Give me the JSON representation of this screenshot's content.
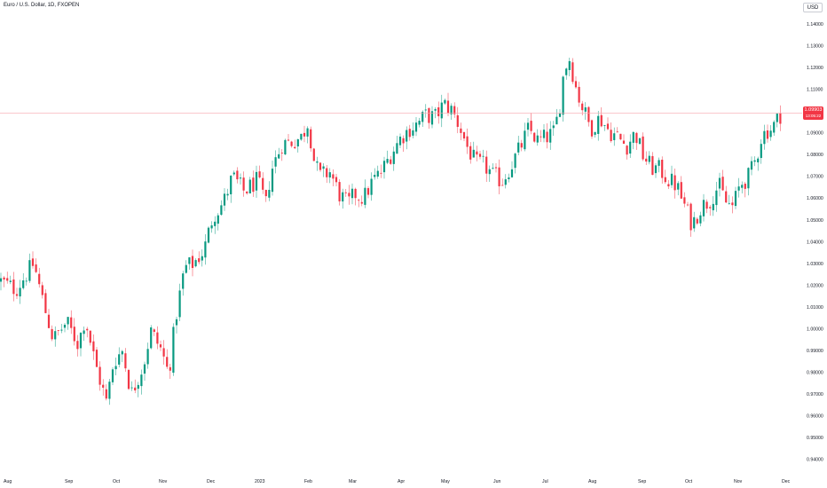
{
  "header": {
    "title": "Euro / U.S. Dollar, 1D, FXOPEN",
    "currency": "USD"
  },
  "price_tag": {
    "price": "1.09903",
    "countdown": "13:05:22"
  },
  "colors": {
    "up": "#089981",
    "down": "#f23645",
    "price_line": "#f7a6ad",
    "axis_text": "#131722",
    "grid_bg": "#ffffff"
  },
  "chart_data": {
    "type": "candlestick",
    "y_axis": {
      "side": "right",
      "range": [
        0.935,
        1.142
      ],
      "ticks": [
        "1.14000",
        "1.13000",
        "1.12000",
        "1.11000",
        "1.10000",
        "1.09000",
        "1.08000",
        "1.07000",
        "1.06000",
        "1.05000",
        "1.04000",
        "1.03000",
        "1.02000",
        "1.01000",
        "1.00000",
        "0.99000",
        "0.98000",
        "0.97000",
        "0.96000",
        "0.95000",
        "0.94000"
      ]
    },
    "x_axis": {
      "labels": [
        "Aug",
        "Sep",
        "Oct",
        "Nov",
        "Dec",
        "2023",
        "Feb",
        "Mar",
        "Apr",
        "May",
        "Jun",
        "Jul",
        "Aug",
        "Sep",
        "Oct",
        "Nov",
        "Dec"
      ]
    },
    "current_price": 1.09903,
    "price_path": [
      [
        0,
        1.022
      ],
      [
        18,
        1.018
      ],
      [
        38,
        1.03
      ],
      [
        50,
        1.01
      ],
      [
        60,
        0.995
      ],
      [
        75,
        1.003
      ],
      [
        88,
        0.993
      ],
      [
        96,
        1.005
      ],
      [
        108,
        0.983
      ],
      [
        120,
        0.966
      ],
      [
        128,
        0.985
      ],
      [
        138,
        0.99
      ],
      [
        148,
        0.97
      ],
      [
        162,
        0.984
      ],
      [
        170,
        0.999
      ],
      [
        182,
        0.99
      ],
      [
        190,
        0.979
      ],
      [
        198,
        1.005
      ],
      [
        208,
        1.028
      ],
      [
        218,
        1.03
      ],
      [
        230,
        1.036
      ],
      [
        240,
        1.052
      ],
      [
        252,
        1.058
      ],
      [
        262,
        1.07
      ],
      [
        275,
        1.063
      ],
      [
        290,
        1.068
      ],
      [
        300,
        1.057
      ],
      [
        305,
        1.072
      ],
      [
        318,
        1.085
      ],
      [
        330,
        1.086
      ],
      [
        340,
        1.088
      ],
      [
        348,
        1.096
      ],
      [
        352,
        1.08
      ],
      [
        360,
        1.07
      ],
      [
        372,
        1.072
      ],
      [
        382,
        1.062
      ],
      [
        392,
        1.057
      ],
      [
        400,
        1.062
      ],
      [
        410,
        1.06
      ],
      [
        420,
        1.068
      ],
      [
        430,
        1.072
      ],
      [
        440,
        1.08
      ],
      [
        452,
        1.088
      ],
      [
        462,
        1.092
      ],
      [
        470,
        1.094
      ],
      [
        480,
        1.098
      ],
      [
        490,
        1.097
      ],
      [
        500,
        1.103
      ],
      [
        508,
        1.101
      ],
      [
        518,
        1.093
      ],
      [
        526,
        1.084
      ],
      [
        536,
        1.076
      ],
      [
        546,
        1.075
      ],
      [
        556,
        1.07
      ],
      [
        566,
        1.068
      ],
      [
        576,
        1.075
      ],
      [
        586,
        1.083
      ],
      [
        596,
        1.092
      ],
      [
        606,
        1.086
      ],
      [
        616,
        1.088
      ],
      [
        624,
        1.09
      ],
      [
        630,
        1.1
      ],
      [
        636,
        1.12
      ],
      [
        642,
        1.124
      ],
      [
        650,
        1.109
      ],
      [
        658,
        1.1
      ],
      [
        666,
        1.092
      ],
      [
        676,
        1.097
      ],
      [
        686,
        1.091
      ],
      [
        696,
        1.088
      ],
      [
        706,
        1.084
      ],
      [
        716,
        1.09
      ],
      [
        724,
        1.08
      ],
      [
        734,
        1.074
      ],
      [
        744,
        1.073
      ],
      [
        754,
        1.068
      ],
      [
        762,
        1.066
      ],
      [
        772,
        1.056
      ],
      [
        780,
        1.048
      ],
      [
        790,
        1.056
      ],
      [
        800,
        1.059
      ],
      [
        810,
        1.066
      ],
      [
        818,
        1.058
      ],
      [
        826,
        1.056
      ],
      [
        834,
        1.066
      ],
      [
        844,
        1.07
      ],
      [
        852,
        1.078
      ],
      [
        858,
        1.088
      ],
      [
        864,
        1.091
      ],
      [
        870,
        1.092
      ],
      [
        876,
        1.096
      ],
      [
        880,
        1.099
      ]
    ]
  }
}
